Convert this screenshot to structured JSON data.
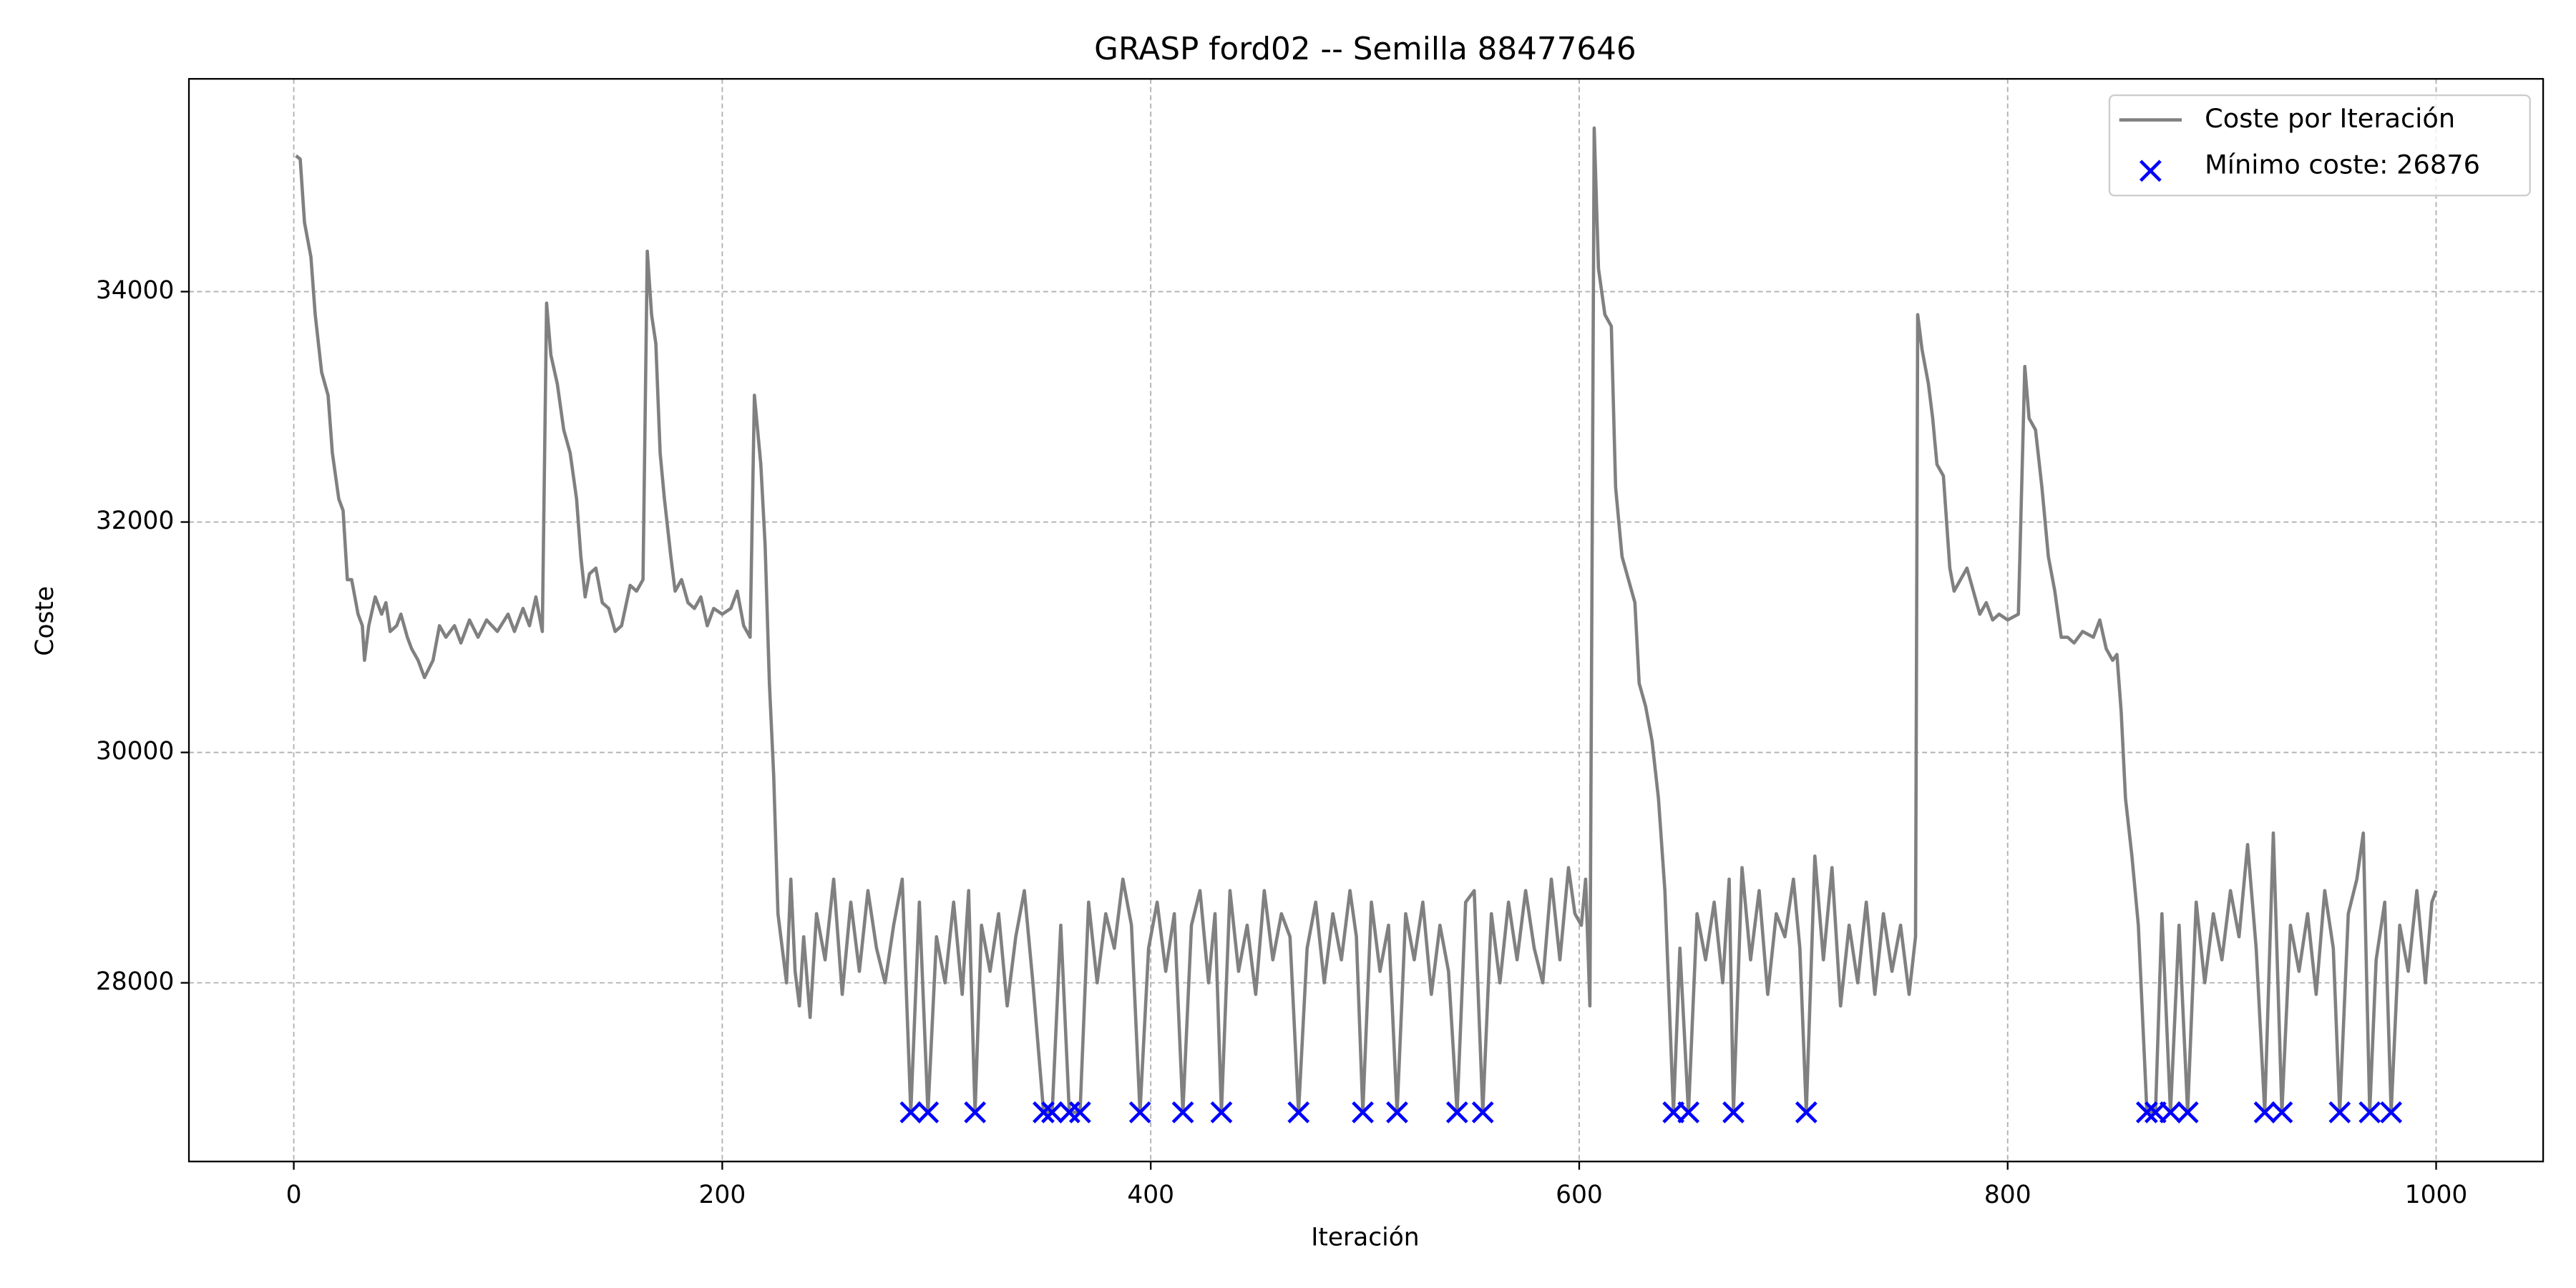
{
  "chart_data": {
    "type": "line",
    "title": "GRASP ford02 -- Semilla 88477646",
    "x_label": "Iteración",
    "y_label": "Coste",
    "xlim": [
      -48.95,
      1049.95
    ],
    "ylim": [
      26449,
      35847
    ],
    "xticks": [
      0,
      200,
      400,
      600,
      800,
      1000
    ],
    "yticks": [
      28000,
      30000,
      32000,
      34000
    ],
    "grid": true,
    "legend": "upper right",
    "series": [
      {
        "name": "Coste por Iteración",
        "type": "line",
        "color": "#808080",
        "x": [
          1,
          3,
          5,
          8,
          10,
          13,
          16,
          18,
          21,
          23,
          25,
          27,
          28,
          30,
          32,
          33,
          35,
          38,
          41,
          43,
          45,
          48,
          50,
          53,
          55,
          58,
          61,
          65,
          68,
          71,
          75,
          78,
          82,
          86,
          90,
          95,
          100,
          103,
          107,
          110,
          113,
          116,
          118,
          120,
          123,
          126,
          129,
          132,
          134,
          136,
          138,
          141,
          144,
          147,
          150,
          153,
          157,
          160,
          163,
          165,
          167,
          169,
          171,
          173,
          176,
          178,
          181,
          184,
          187,
          190,
          193,
          196,
          200,
          204,
          207,
          210,
          213,
          215,
          218,
          220,
          222,
          224,
          226,
          228,
          230,
          232,
          234,
          236,
          238,
          241,
          244,
          248,
          252,
          256,
          260,
          264,
          268,
          272,
          276,
          280,
          284,
          288,
          292,
          296,
          300,
          304,
          308,
          312,
          315,
          318,
          321,
          325,
          329,
          333,
          337,
          341,
          345,
          350,
          354,
          358,
          362,
          367,
          371,
          375,
          379,
          383,
          387,
          391,
          395,
          399,
          403,
          407,
          411,
          415,
          419,
          423,
          427,
          430,
          433,
          437,
          441,
          445,
          449,
          453,
          457,
          461,
          465,
          469,
          473,
          477,
          481,
          485,
          489,
          493,
          496,
          499,
          503,
          507,
          511,
          515,
          519,
          523,
          527,
          531,
          535,
          539,
          543,
          547,
          551,
          555,
          559,
          563,
          567,
          571,
          575,
          579,
          583,
          587,
          591,
          595,
          598,
          601,
          603,
          605,
          607,
          609,
          612,
          615,
          617,
          620,
          623,
          626,
          628,
          631,
          634,
          637,
          640,
          644,
          647,
          651,
          655,
          659,
          663,
          667,
          670,
          672,
          676,
          680,
          684,
          688,
          692,
          696,
          700,
          703,
          706,
          710,
          714,
          718,
          722,
          726,
          730,
          734,
          738,
          742,
          746,
          750,
          754,
          757,
          758,
          760,
          763,
          765,
          767,
          770,
          773,
          775,
          778,
          781,
          784,
          787,
          790,
          793,
          796,
          800,
          805,
          808,
          810,
          813,
          816,
          819,
          822,
          825,
          828,
          831,
          835,
          840,
          843,
          846,
          849,
          851,
          853,
          855,
          858,
          861,
          865,
          869,
          872,
          876,
          880,
          884,
          888,
          892,
          896,
          900,
          904,
          908,
          912,
          916,
          920,
          924,
          928,
          932,
          936,
          940,
          944,
          948,
          952,
          955,
          959,
          963,
          966,
          969,
          972,
          976,
          979,
          983,
          987,
          991,
          995,
          998,
          1000
        ],
        "values": [
          35180,
          35150,
          34600,
          34300,
          33800,
          33300,
          33100,
          32600,
          32200,
          32100,
          31500,
          31500,
          31400,
          31200,
          31100,
          30800,
          31100,
          31350,
          31200,
          31300,
          31050,
          31100,
          31200,
          31000,
          30900,
          30800,
          30650,
          30800,
          31100,
          31000,
          31100,
          30950,
          31150,
          31000,
          31150,
          31050,
          31200,
          31050,
          31250,
          31100,
          31350,
          31050,
          33900,
          33450,
          33200,
          32800,
          32600,
          32200,
          31700,
          31350,
          31550,
          31600,
          31300,
          31250,
          31050,
          31100,
          31450,
          31400,
          31500,
          34350,
          33800,
          33550,
          32600,
          32200,
          31700,
          31400,
          31500,
          31300,
          31250,
          31350,
          31100,
          31250,
          31200,
          31250,
          31400,
          31100,
          31000,
          33100,
          32500,
          31800,
          30600,
          29800,
          28600,
          28300,
          28000,
          28900,
          28100,
          27800,
          28400,
          27700,
          28600,
          28200,
          28900,
          27900,
          28700,
          28100,
          28800,
          28300,
          28000,
          28500,
          28900,
          26876,
          28700,
          26876,
          28400,
          28000,
          28700,
          27900,
          28800,
          26876,
          28500,
          28100,
          28600,
          27800,
          28400,
          28800,
          28000,
          26876,
          26876,
          28500,
          26876,
          26876,
          28700,
          28000,
          28600,
          28300,
          28900,
          28500,
          26876,
          28300,
          28700,
          28100,
          28600,
          26876,
          28500,
          28800,
          28000,
          28600,
          26876,
          28800,
          28100,
          28500,
          27900,
          28800,
          28200,
          28600,
          28400,
          26876,
          28300,
          28700,
          28000,
          28600,
          28200,
          28800,
          28400,
          26876,
          28700,
          28100,
          28500,
          26876,
          28600,
          28200,
          28700,
          27900,
          28500,
          28100,
          26876,
          28700,
          28800,
          26876,
          28600,
          28000,
          28700,
          28200,
          28800,
          28300,
          28000,
          28900,
          28200,
          29000,
          28600,
          28500,
          28900,
          27800,
          35420,
          34200,
          33800,
          33700,
          32300,
          31700,
          31500,
          31300,
          30600,
          30400,
          30100,
          29600,
          28800,
          26876,
          28300,
          26876,
          28600,
          28200,
          28700,
          28000,
          28900,
          26876,
          29000,
          28200,
          28800,
          27900,
          28600,
          28400,
          28900,
          28300,
          26876,
          29100,
          28200,
          29000,
          27800,
          28500,
          28000,
          28700,
          27900,
          28600,
          28100,
          28500,
          27900,
          28400,
          33800,
          33500,
          33200,
          32900,
          32500,
          32400,
          31600,
          31400,
          31500,
          31600,
          31400,
          31200,
          31300,
          31150,
          31200,
          31150,
          31200,
          33350,
          32900,
          32800,
          32300,
          31700,
          31400,
          31000,
          31000,
          30950,
          31050,
          31000,
          31150,
          30900,
          30800,
          30850,
          30350,
          29600,
          29100,
          28500,
          26876,
          26876,
          28600,
          26876,
          28500,
          26876,
          28700,
          28000,
          28600,
          28200,
          28800,
          28400,
          29200,
          28300,
          26876,
          29300,
          26876,
          28500,
          28100,
          28600,
          27900,
          28800,
          28300,
          26876,
          28600,
          28900,
          29300,
          26876,
          28200,
          28700,
          26876,
          28500,
          28100,
          28800,
          28000,
          28700,
          28800
        ]
      },
      {
        "name": "Mínimo coste: 26876",
        "type": "scatter",
        "marker": "x",
        "color": "#0000ff",
        "x": [
          288,
          296,
          318,
          350,
          354,
          362,
          367,
          395,
          415,
          433,
          469,
          499,
          515,
          543,
          555,
          644,
          651,
          672,
          706,
          865,
          869,
          876,
          884,
          920,
          928,
          955,
          969,
          979
        ],
        "values": [
          26876,
          26876,
          26876,
          26876,
          26876,
          26876,
          26876,
          26876,
          26876,
          26876,
          26876,
          26876,
          26876,
          26876,
          26876,
          26876,
          26876,
          26876,
          26876,
          26876,
          26876,
          26876,
          26876,
          26876,
          26876,
          26876,
          26876,
          26876
        ]
      }
    ]
  }
}
